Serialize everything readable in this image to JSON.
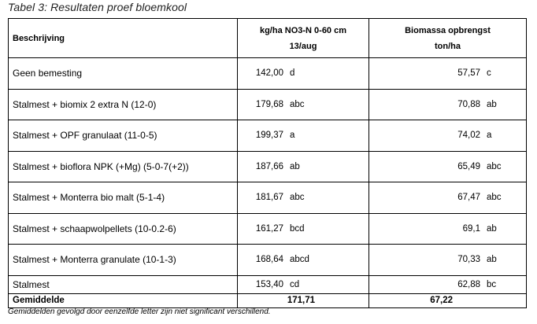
{
  "caption": "Tabel 3: Resultaten proef bloemkool",
  "headers": {
    "description": "Beschrijving",
    "kg_line1": "kg/ha NO3-N 0-60 cm",
    "kg_line2": "13/aug",
    "bio_line1": "Biomassa opbrengst",
    "bio_line2": "ton/ha"
  },
  "rows": [
    {
      "description": "Geen bemesting",
      "kg": "142,00",
      "kg_letter": "d",
      "bio": "57,57",
      "bio_letter": "c"
    },
    {
      "description": "Stalmest + biomix 2 extra N (12-0)",
      "kg": "179,68",
      "kg_letter": "abc",
      "bio": "70,88",
      "bio_letter": "ab"
    },
    {
      "description": "Stalmest + OPF granulaat (11-0-5)",
      "kg": "199,37",
      "kg_letter": "a",
      "bio": "74,02",
      "bio_letter": "a"
    },
    {
      "description": "Stalmest + bioflora NPK (+Mg) (5-0-7(+2))",
      "kg": "187,66",
      "kg_letter": "ab",
      "bio": "65,49",
      "bio_letter": "abc"
    },
    {
      "description": "Stalmest + Monterra bio malt (5-1-4)",
      "kg": "181,67",
      "kg_letter": "abc",
      "bio": "67,47",
      "bio_letter": "abc"
    },
    {
      "description": "Stalmest + schaapwolpellets (10-0.2-6)",
      "kg": "161,27",
      "kg_letter": "bcd",
      "bio": "69,1",
      "bio_letter": "ab"
    },
    {
      "description": "Stalmest + Monterra granulate (10-1-3)",
      "kg": "168,64",
      "kg_letter": "abcd",
      "bio": "70,33",
      "bio_letter": "ab"
    },
    {
      "description": "Stalmest",
      "kg": "153,40",
      "kg_letter": "cd",
      "bio": "62,88",
      "bio_letter": "bc"
    }
  ],
  "average": {
    "label": "Gemiddelde",
    "kg": "171,71",
    "bio": "67,22"
  },
  "footnote": "Gemiddelden gevolgd door eenzelfde letter zijn niet significant verschillend."
}
